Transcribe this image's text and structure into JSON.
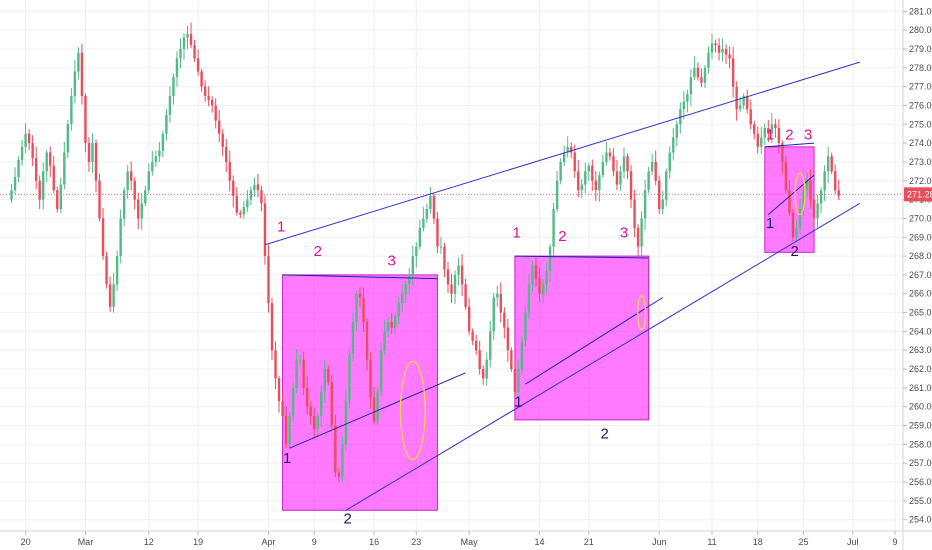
{
  "chart_data": {
    "type": "candlestick",
    "title": "",
    "xlabel": "",
    "ylabel": "",
    "x_tick_labels": [
      "20",
      "Mar",
      "12",
      "19",
      "Apr",
      "9",
      "16",
      "23",
      "May",
      "14",
      "21",
      "Jun",
      "11",
      "18",
      "25",
      "Jul",
      "9"
    ],
    "y_ticks": [
      254,
      255,
      256,
      257,
      258,
      259,
      260,
      261,
      262,
      263,
      264,
      265,
      266,
      267,
      268,
      269,
      270,
      271,
      272,
      273,
      274,
      275,
      276,
      277,
      278,
      279,
      280,
      281
    ],
    "ylim": [
      253.4,
      281.6
    ],
    "grid": true,
    "current_price": "271.28",
    "colors": {
      "up": "#53b987",
      "down": "#eb4d5c",
      "trendline": "#3333cc",
      "box_fill": "#ff22ff",
      "box_edge": "#cc22cc",
      "pattern_line": "#2222aa",
      "label_pink": "#e0118e",
      "label_navy": "#1a1a6e",
      "circle": "#e8d64a",
      "price_label_bg": "#eb4d5c"
    },
    "series": [
      {
        "name": "",
        "points": [
          [
            0,
            271.0
          ],
          [
            1,
            271.5
          ],
          [
            2,
            272.2
          ],
          [
            3,
            273.1
          ],
          [
            4,
            273.8
          ],
          [
            5,
            274.5
          ],
          [
            6,
            274.0
          ],
          [
            7,
            273.2
          ],
          [
            8,
            272.0
          ],
          [
            9,
            271.0
          ],
          [
            10,
            272.5
          ],
          [
            11,
            273.5
          ],
          [
            12,
            272.8
          ],
          [
            13,
            271.5
          ],
          [
            14,
            270.5
          ],
          [
            15,
            271.8
          ],
          [
            16,
            273.5
          ],
          [
            17,
            275.0
          ],
          [
            18,
            276.5
          ],
          [
            19,
            277.8
          ],
          [
            20,
            278.8
          ],
          [
            21,
            276.5
          ],
          [
            22,
            274.0
          ],
          [
            23,
            273.0
          ],
          [
            24,
            274.0
          ],
          [
            25,
            272.0
          ],
          [
            26,
            270.0
          ],
          [
            27,
            268.0
          ],
          [
            28,
            266.5
          ],
          [
            29,
            265.3
          ],
          [
            30,
            266.5
          ],
          [
            31,
            268.0
          ],
          [
            32,
            270.0
          ],
          [
            33,
            271.5
          ],
          [
            34,
            272.5
          ],
          [
            35,
            272.0
          ],
          [
            36,
            271.0
          ],
          [
            37,
            270.0
          ],
          [
            38,
            270.8
          ],
          [
            39,
            271.5
          ],
          [
            40,
            272.5
          ],
          [
            41,
            273.0
          ],
          [
            42,
            273.3
          ],
          [
            43,
            273.6
          ],
          [
            44,
            274.5
          ],
          [
            45,
            275.5
          ],
          [
            46,
            276.5
          ],
          [
            47,
            277.5
          ],
          [
            48,
            278.5
          ],
          [
            49,
            279.0
          ],
          [
            50,
            279.6
          ],
          [
            51,
            279.8
          ],
          [
            52,
            279.2
          ],
          [
            53,
            278.5
          ],
          [
            54,
            277.8
          ],
          [
            55,
            277.0
          ],
          [
            56,
            276.5
          ],
          [
            57,
            276.3
          ],
          [
            58,
            276.0
          ],
          [
            59,
            275.2
          ],
          [
            60,
            274.5
          ],
          [
            61,
            273.8
          ],
          [
            62,
            273.0
          ],
          [
            63,
            272.0
          ],
          [
            64,
            271.2
          ],
          [
            65,
            270.3
          ],
          [
            66,
            270.2
          ],
          [
            67,
            270.6
          ],
          [
            68,
            271.0
          ],
          [
            69,
            271.5
          ],
          [
            70,
            271.8
          ],
          [
            71,
            271.5
          ],
          [
            72,
            270.8
          ],
          [
            73,
            268.0
          ],
          [
            74,
            265.5
          ],
          [
            75,
            263.0
          ],
          [
            76,
            261.5
          ],
          [
            77,
            260.3
          ],
          [
            78,
            259.5
          ],
          [
            79,
            258.0
          ],
          [
            80,
            259.5
          ],
          [
            81,
            261.0
          ],
          [
            82,
            262.5
          ],
          [
            83,
            262.5
          ],
          [
            84,
            261.0
          ],
          [
            85,
            260.0
          ],
          [
            86,
            259.5
          ],
          [
            87,
            258.8
          ],
          [
            88,
            259.5
          ],
          [
            89,
            260.8
          ],
          [
            90,
            262.0
          ],
          [
            91,
            261.3
          ],
          [
            92,
            259.0
          ],
          [
            93,
            256.5
          ],
          [
            94,
            256.3
          ],
          [
            95,
            258.0
          ],
          [
            96,
            260.3
          ],
          [
            97,
            262.8
          ],
          [
            98,
            264.5
          ],
          [
            99,
            266.0
          ],
          [
            100,
            265.8
          ],
          [
            101,
            264.5
          ],
          [
            102,
            262.5
          ],
          [
            103,
            260.5
          ],
          [
            104,
            259.2
          ],
          [
            105,
            260.8
          ],
          [
            106,
            263.0
          ],
          [
            107,
            264.0
          ],
          [
            108,
            264.5
          ],
          [
            109,
            264.2
          ],
          [
            110,
            264.8
          ],
          [
            111,
            265.5
          ],
          [
            112,
            266.0
          ],
          [
            113,
            266.5
          ],
          [
            114,
            267.0
          ],
          [
            115,
            268.0
          ],
          [
            116,
            268.5
          ],
          [
            117,
            269.5
          ],
          [
            118,
            270.0
          ],
          [
            119,
            270.5
          ],
          [
            120,
            271.2
          ],
          [
            121,
            270.0
          ],
          [
            122,
            268.5
          ],
          [
            123,
            268.5
          ],
          [
            124,
            267.3
          ],
          [
            125,
            266.5
          ],
          [
            126,
            266.0
          ],
          [
            127,
            267.0
          ],
          [
            128,
            267.5
          ],
          [
            129,
            266.5
          ],
          [
            130,
            265.3
          ],
          [
            131,
            264.0
          ],
          [
            132,
            263.5
          ],
          [
            133,
            263.0
          ],
          [
            134,
            262.0
          ],
          [
            135,
            261.5
          ],
          [
            136,
            262.5
          ],
          [
            137,
            264.0
          ],
          [
            138,
            265.8
          ],
          [
            139,
            266.0
          ],
          [
            140,
            265.0
          ],
          [
            141,
            264.2
          ],
          [
            142,
            263.0
          ],
          [
            143,
            262.0
          ],
          [
            144,
            260.8
          ],
          [
            145,
            262.0
          ],
          [
            146,
            263.5
          ],
          [
            147,
            265.0
          ],
          [
            148,
            266.5
          ],
          [
            149,
            267.5
          ],
          [
            150,
            266.8
          ],
          [
            151,
            266.0
          ],
          [
            152,
            266.5
          ],
          [
            153,
            267.2
          ],
          [
            154,
            268.5
          ],
          [
            155,
            270.5
          ],
          [
            156,
            272.0
          ],
          [
            157,
            273.0
          ],
          [
            158,
            273.5
          ],
          [
            159,
            273.8
          ],
          [
            160,
            273.5
          ],
          [
            161,
            272.5
          ],
          [
            162,
            271.5
          ],
          [
            163,
            271.8
          ],
          [
            164,
            272.5
          ],
          [
            165,
            272.8
          ],
          [
            166,
            272.0
          ],
          [
            167,
            271.5
          ],
          [
            168,
            272.3
          ],
          [
            169,
            273.0
          ],
          [
            170,
            273.5
          ],
          [
            171,
            273.3
          ],
          [
            172,
            272.5
          ],
          [
            173,
            271.8
          ],
          [
            174,
            272.5
          ],
          [
            175,
            273.3
          ],
          [
            176,
            272.5
          ],
          [
            177,
            271.0
          ],
          [
            178,
            269.5
          ],
          [
            179,
            268.5
          ],
          [
            180,
            270.0
          ],
          [
            181,
            271.5
          ],
          [
            182,
            272.5
          ],
          [
            183,
            273.0
          ],
          [
            184,
            272.0
          ],
          [
            185,
            270.5
          ],
          [
            186,
            271.0
          ],
          [
            187,
            272.5
          ],
          [
            188,
            273.5
          ],
          [
            189,
            274.3
          ],
          [
            190,
            275.0
          ],
          [
            191,
            275.8
          ],
          [
            192,
            276.2
          ],
          [
            193,
            276.6
          ],
          [
            194,
            277.5
          ],
          [
            195,
            278.0
          ],
          [
            196,
            277.5
          ],
          [
            197,
            277.2
          ],
          [
            198,
            278.0
          ],
          [
            199,
            278.8
          ],
          [
            200,
            279.3
          ],
          [
            201,
            279.2
          ],
          [
            202,
            278.8
          ],
          [
            203,
            279.0
          ],
          [
            204,
            278.7
          ],
          [
            205,
            278.5
          ],
          [
            206,
            277.0
          ],
          [
            207,
            275.8
          ],
          [
            208,
            276.0
          ],
          [
            209,
            276.5
          ],
          [
            210,
            275.8
          ],
          [
            211,
            275.0
          ],
          [
            212,
            274.5
          ],
          [
            213,
            273.8
          ],
          [
            214,
            274.3
          ],
          [
            215,
            274.8
          ],
          [
            216,
            274.5
          ],
          [
            217,
            275.0
          ],
          [
            218,
            274.8
          ],
          [
            219,
            274.0
          ],
          [
            220,
            273.0
          ],
          [
            221,
            271.5
          ],
          [
            222,
            270.3
          ],
          [
            223,
            269.0
          ],
          [
            224,
            269.5
          ],
          [
            225,
            270.5
          ],
          [
            226,
            271.5
          ],
          [
            227,
            272.0
          ],
          [
            228,
            271.0
          ],
          [
            229,
            270.0
          ],
          [
            230,
            270.8
          ],
          [
            231,
            271.5
          ],
          [
            232,
            272.5
          ],
          [
            233,
            273.3
          ],
          [
            234,
            272.5
          ],
          [
            235,
            271.5
          ],
          [
            236,
            271.2
          ]
        ]
      }
    ],
    "annotations": {
      "rectangles": [
        {
          "x0": 78,
          "x1": 122,
          "y0": 254.5,
          "y1": 267.0
        },
        {
          "x0": 144,
          "x1": 182,
          "y0": 259.3,
          "y1": 268.0
        },
        {
          "x0": 215,
          "x1": 229,
          "y0": 268.2,
          "y1": 273.8
        }
      ],
      "trendlines": [
        {
          "points": [
            [
              73,
              268.6
            ],
            [
              242,
              278.3
            ]
          ]
        },
        {
          "points": [
            [
              96,
              254.5
            ],
            [
              242,
              270.8
            ]
          ]
        },
        {
          "points": [
            [
              78,
              267.0
            ],
            [
              122,
              266.8
            ]
          ]
        },
        {
          "points": [
            [
              144,
              268.0
            ],
            [
              182,
              267.9
            ]
          ]
        },
        {
          "points": [
            [
              215,
              273.8
            ],
            [
              229,
              274.0
            ]
          ]
        },
        {
          "points": [
            [
              80,
              257.8
            ],
            [
              130,
              261.8
            ]
          ]
        },
        {
          "points": [
            [
              147,
              261.2
            ],
            [
              186,
              265.8
            ]
          ]
        },
        {
          "points": [
            [
              216,
              270.2
            ],
            [
              229,
              272.3
            ]
          ]
        }
      ],
      "circles": [
        {
          "x": 115,
          "y": 259.8,
          "rx": 3.5,
          "ry": 2.6
        },
        {
          "x": 180,
          "y": 265.0,
          "rx": 1.1,
          "ry": 0.9
        },
        {
          "x": 225,
          "y": 271.3,
          "rx": 1.4,
          "ry": 1.1
        }
      ],
      "labels": [
        {
          "text": "1",
          "x": 77.6,
          "y": 269.3,
          "color": "pink"
        },
        {
          "text": "2",
          "x": 88,
          "y": 268.0,
          "color": "pink"
        },
        {
          "text": "3",
          "x": 109,
          "y": 267.5,
          "color": "pink"
        },
        {
          "text": "1",
          "x": 79.3,
          "y": 257.0,
          "color": "navy"
        },
        {
          "text": "2",
          "x": 96.5,
          "y": 253.8,
          "color": "navy"
        },
        {
          "text": "1",
          "x": 144.5,
          "y": 269.0,
          "color": "pink"
        },
        {
          "text": "2",
          "x": 157.5,
          "y": 268.8,
          "color": "pink"
        },
        {
          "text": "3",
          "x": 175,
          "y": 269.0,
          "color": "pink"
        },
        {
          "text": "1",
          "x": 145,
          "y": 260.0,
          "color": "navy"
        },
        {
          "text": "2",
          "x": 169.5,
          "y": 258.3,
          "color": "navy"
        },
        {
          "text": "1",
          "x": 216.5,
          "y": 274.2,
          "color": "pink"
        },
        {
          "text": "2",
          "x": 222,
          "y": 274.2,
          "color": "pink"
        },
        {
          "text": "3",
          "x": 227.3,
          "y": 274.2,
          "color": "pink"
        },
        {
          "text": "1",
          "x": 216.5,
          "y": 269.5,
          "color": "navy"
        },
        {
          "text": "2",
          "x": 223.5,
          "y": 268.0,
          "color": "navy"
        }
      ]
    }
  }
}
